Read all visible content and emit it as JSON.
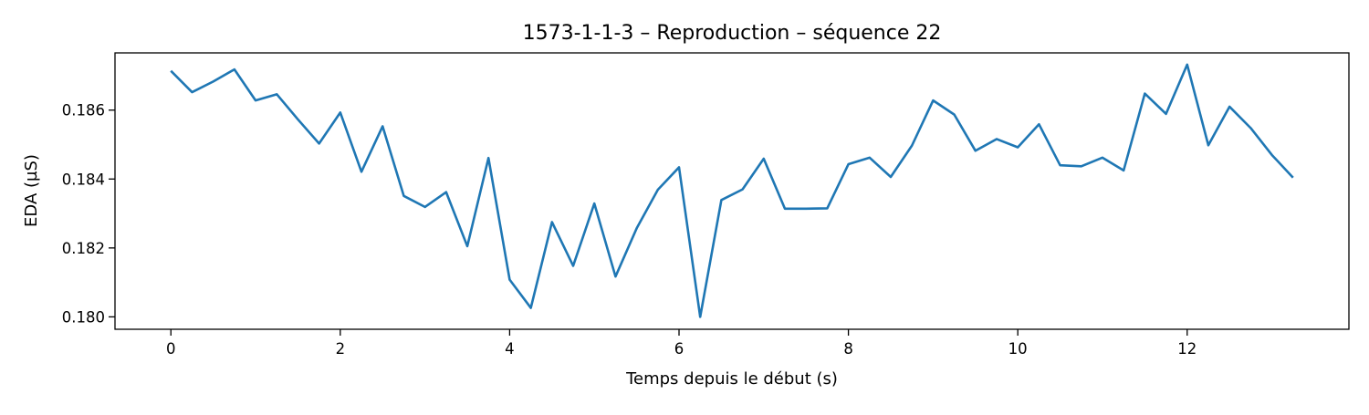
{
  "chart_data": {
    "type": "line",
    "title": "1573-1-1-3 – Reproduction – séquence 22",
    "xlabel": "Temps depuis le début (s)",
    "ylabel": "EDA (µS)",
    "xlim": [
      -0.66,
      13.91
    ],
    "ylim": [
      0.17964,
      0.18766
    ],
    "xticks": [
      0,
      2,
      4,
      6,
      8,
      10,
      12
    ],
    "xtick_labels": [
      "0",
      "2",
      "4",
      "6",
      "8",
      "10",
      "12"
    ],
    "yticks": [
      0.18,
      0.182,
      0.184,
      0.186
    ],
    "ytick_labels": [
      "0.180",
      "0.182",
      "0.184",
      "0.186"
    ],
    "grid": false,
    "series": [
      {
        "color": "#1f77b4",
        "x": [
          0,
          0.25,
          0.5,
          0.75,
          1,
          1.25,
          1.5,
          1.75,
          2,
          2.25,
          2.5,
          2.75,
          3,
          3.25,
          3.5,
          3.75,
          4,
          4.25,
          4.5,
          4.75,
          5,
          5.25,
          5.5,
          5.75,
          6,
          6.25,
          6.5,
          6.75,
          7,
          7.25,
          7.5,
          7.75,
          8,
          8.25,
          8.5,
          8.75,
          9,
          9.25,
          9.5,
          9.75,
          10,
          10.25,
          10.5,
          10.75,
          11,
          11.25,
          11.5,
          11.75,
          12,
          12.25,
          12.5,
          12.75,
          13,
          13.25
        ],
        "y": [
          0.18714,
          0.18652,
          0.18683,
          0.18718,
          0.18628,
          0.18646,
          0.18573,
          0.18503,
          0.18593,
          0.18421,
          0.18553,
          0.18351,
          0.18319,
          0.18362,
          0.18205,
          0.18461,
          0.18108,
          0.18026,
          0.18275,
          0.18148,
          0.18329,
          0.18117,
          0.18257,
          0.18369,
          0.18434,
          0.18,
          0.18339,
          0.1837,
          0.18459,
          0.18314,
          0.18314,
          0.18315,
          0.18443,
          0.18462,
          0.18406,
          0.18497,
          0.18628,
          0.18587,
          0.18482,
          0.18516,
          0.18492,
          0.18559,
          0.1844,
          0.18437,
          0.18462,
          0.18425,
          0.18648,
          0.18589,
          0.18732,
          0.18498,
          0.1861,
          0.18548,
          0.1847,
          0.18404
        ]
      }
    ]
  }
}
